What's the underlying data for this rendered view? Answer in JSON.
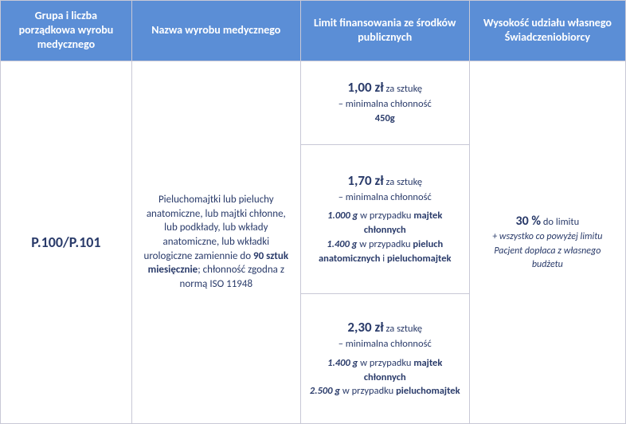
{
  "header": {
    "col_group": "Grupa i liczba porządkowa wyrobu medycznego",
    "col_name": "Nazwa wyrobu medycznego",
    "col_limit": "Limit finansowania ze środków publicznych",
    "col_share": "Wysokość udziału własnego Świadczeniobiorcy"
  },
  "row": {
    "group_code": "P.100/P.101",
    "product_desc_pre": "Pieluchomajtki lub pieluchy anatomiczne, lub majtki chłonne, lub podkłady, lub wkłady anatomiczne, lub wkładki urologiczne zamiennie do ",
    "product_desc_bold": "90 sztuk miesięcznie",
    "product_desc_post": "; chłonność zgodna z normą ISO 11948",
    "limits": [
      {
        "price": "1,00 zł",
        "per": " za sztukę",
        "sub1": "– minimalna chłonność",
        "abs_bold": "450g"
      },
      {
        "price": "1,70 zł",
        "per": " za sztukę",
        "sub1": "– minimalna chłonność",
        "l1_val": "1.000 g",
        "l1_txt": " w przypadku ",
        "l1_b": "majtek chłonnych",
        "l2_val": "1.400 g",
        "l2_txt": " w przypadku ",
        "l2_b": "pieluch anatomicznych",
        "l2_and": " i ",
        "l2_b2": "pieluchomajtek"
      },
      {
        "price": "2,30 zł",
        "per": " za sztukę",
        "sub1": "– minimalna chłonność",
        "l1_val": "1.400 g",
        "l1_txt": " w przypadku ",
        "l1_b": "majtek chłonnych",
        "l2_val": "2.500 g",
        "l2_txt": " w przypadku ",
        "l2_b": "pieluchomajtek"
      }
    ],
    "share_main_pct": "30 %",
    "share_main_txt": " do limitu",
    "share_sub": "+ wszystko co powyżej limitu Pacjent dopłaca z własnego budżetu"
  },
  "colors": {
    "header_bg": "#5b8ed6",
    "header_fg": "#ffffff",
    "border": "#c8c8d6",
    "text": "#2a3b6a"
  }
}
